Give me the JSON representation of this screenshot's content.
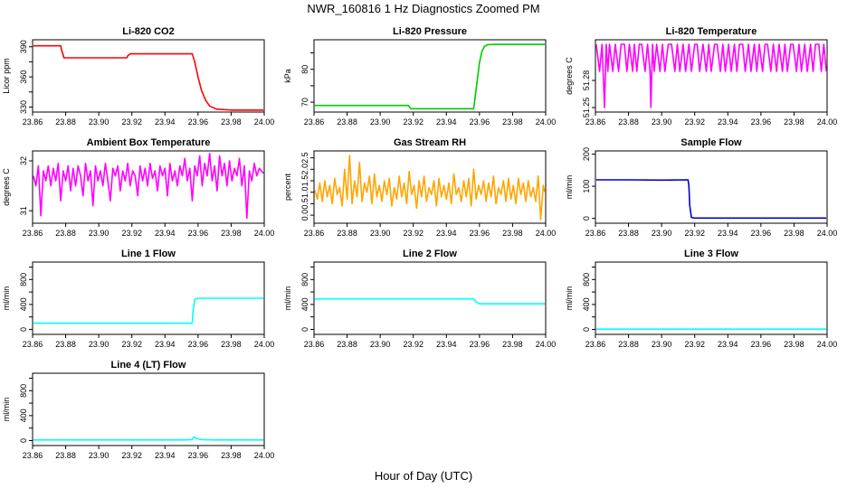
{
  "figure": {
    "title": "NWR_160816  1 Hz Diagnostics Zoomed PM",
    "xlabel": "Hour of Day (UTC)"
  },
  "chart_data": [
    {
      "type": "line",
      "title": "Li-820 CO2",
      "ylabel": "Licor ppm",
      "color": "#ff0000",
      "xlim": [
        23.86,
        24.0
      ],
      "ylim": [
        325,
        397
      ],
      "yticks": [
        330,
        360,
        390
      ],
      "yticks_extra": [
        345,
        375
      ],
      "xticks": [
        23.86,
        23.88,
        23.9,
        23.92,
        23.94,
        23.96,
        23.98,
        24.0
      ],
      "series": [
        {
          "x": [
            23.8605,
            23.877,
            23.8775,
            23.879,
            23.917,
            23.9175,
            23.919,
            23.9565,
            23.958,
            23.96,
            23.962,
            23.9645,
            23.967,
            23.971,
            23.98,
            23.9995
          ],
          "y": [
            391,
            391,
            387,
            379,
            379,
            381,
            383,
            383,
            375,
            360,
            347,
            337,
            331,
            328,
            327,
            327
          ]
        }
      ]
    },
    {
      "type": "line",
      "title": "Li-820 Pressure",
      "ylabel": "kPa",
      "color": "#00cc00",
      "xlim": [
        23.86,
        24.0
      ],
      "ylim": [
        67,
        89
      ],
      "yticks": [
        70,
        80
      ],
      "yticks_extra": [
        75,
        85
      ],
      "xticks": [
        23.86,
        23.88,
        23.9,
        23.92,
        23.94,
        23.96,
        23.98,
        24.0
      ],
      "series": [
        {
          "x": [
            23.8605,
            23.917,
            23.9185,
            23.9565,
            23.957,
            23.9585,
            23.96,
            23.9615,
            23.963,
            23.965,
            23.97,
            23.99,
            23.9995
          ],
          "y": [
            69,
            69,
            68,
            68,
            70,
            76,
            82,
            85.5,
            87,
            87.5,
            87.6,
            87.6,
            87.6
          ]
        }
      ]
    },
    {
      "type": "line",
      "title": "Li-820 Temperature",
      "ylabel": "degrees C",
      "color": "#ff00ff",
      "xlim": [
        23.86,
        24.0
      ],
      "ylim": [
        51.245,
        51.325
      ],
      "yticks": [
        51.25,
        51.28
      ],
      "xticks": [
        23.86,
        23.88,
        23.9,
        23.92,
        23.94,
        23.96,
        23.98,
        24.0
      ],
      "series": [
        {
          "x": [
            23.8605,
            23.8625,
            23.864,
            23.8655,
            23.8665,
            23.8675,
            23.8685,
            23.8705,
            23.872,
            23.874,
            23.8755,
            23.8775,
            23.879,
            23.8805,
            23.8825,
            23.8835,
            23.885,
            23.8865,
            23.888,
            23.89,
            23.8915,
            23.893,
            23.8935,
            23.8945,
            23.8955,
            23.897,
            23.899,
            23.9005,
            23.902,
            23.904,
            23.906,
            23.908,
            23.9095,
            23.911,
            23.913,
            23.9145,
            23.9165,
            23.918,
            23.92,
            23.9215,
            23.923,
            23.925,
            23.927,
            23.9285,
            23.93,
            23.932,
            23.9335,
            23.9355,
            23.937,
            23.9385,
            23.9405,
            23.942,
            23.944,
            23.9455,
            23.947,
            23.949,
            23.9505,
            23.9525,
            23.954,
            23.956,
            23.9575,
            23.959,
            23.961,
            23.9625,
            23.964,
            23.966,
            23.9675,
            23.9695,
            23.971,
            23.973,
            23.9745,
            23.976,
            23.978,
            23.9795,
            23.9815,
            23.983,
            23.9845,
            23.9865,
            23.988,
            23.99,
            23.9915,
            23.993,
            23.995,
            23.9965,
            23.998,
            23.9995
          ],
          "y": [
            51.32,
            51.29,
            51.32,
            51.25,
            51.32,
            51.29,
            51.32,
            51.29,
            51.32,
            51.29,
            51.32,
            51.32,
            51.29,
            51.32,
            51.29,
            51.32,
            51.29,
            51.32,
            51.32,
            51.29,
            51.32,
            51.29,
            51.25,
            51.32,
            51.29,
            51.32,
            51.29,
            51.32,
            51.29,
            51.32,
            51.32,
            51.29,
            51.32,
            51.29,
            51.32,
            51.29,
            51.32,
            51.29,
            51.32,
            51.32,
            51.29,
            51.32,
            51.29,
            51.32,
            51.29,
            51.32,
            51.32,
            51.29,
            51.32,
            51.29,
            51.32,
            51.29,
            51.32,
            51.29,
            51.32,
            51.32,
            51.29,
            51.32,
            51.29,
            51.32,
            51.29,
            51.32,
            51.29,
            51.32,
            51.32,
            51.29,
            51.32,
            51.29,
            51.32,
            51.29,
            51.32,
            51.29,
            51.32,
            51.32,
            51.29,
            51.32,
            51.29,
            51.32,
            51.29,
            51.32,
            51.29,
            51.32,
            51.32,
            51.29,
            51.32,
            51.29
          ]
        }
      ]
    },
    {
      "type": "line",
      "title": "Ambient Box Temperature",
      "ylabel": "degrees C",
      "color": "#ff00ff",
      "xlim": [
        23.86,
        24.0
      ],
      "ylim": [
        30.75,
        32.2
      ],
      "yticks": [
        31.0,
        32.0
      ],
      "xticks": [
        23.86,
        23.88,
        23.9,
        23.92,
        23.94,
        23.96,
        23.98,
        24.0
      ],
      "series": [
        {
          "x": [
            23.8605,
            23.862,
            23.8635,
            23.865,
            23.8665,
            23.868,
            23.8695,
            23.871,
            23.8725,
            23.874,
            23.8755,
            23.877,
            23.8785,
            23.88,
            23.8815,
            23.883,
            23.8845,
            23.886,
            23.8875,
            23.889,
            23.8905,
            23.892,
            23.8935,
            23.895,
            23.8965,
            23.898,
            23.8995,
            23.901,
            23.9025,
            23.904,
            23.9055,
            23.907,
            23.9085,
            23.91,
            23.9115,
            23.913,
            23.9145,
            23.916,
            23.9175,
            23.919,
            23.9205,
            23.922,
            23.9235,
            23.925,
            23.9265,
            23.928,
            23.9295,
            23.931,
            23.9325,
            23.934,
            23.9355,
            23.937,
            23.9385,
            23.94,
            23.9415,
            23.943,
            23.9445,
            23.946,
            23.9475,
            23.949,
            23.9505,
            23.952,
            23.9535,
            23.955,
            23.9565,
            23.958,
            23.9595,
            23.961,
            23.9625,
            23.964,
            23.9655,
            23.967,
            23.9685,
            23.97,
            23.9715,
            23.973,
            23.9745,
            23.976,
            23.9775,
            23.979,
            23.9805,
            23.982,
            23.9835,
            23.985,
            23.9865,
            23.988,
            23.9895,
            23.991,
            23.9925,
            23.994,
            23.9955,
            23.997,
            23.9995
          ],
          "y": [
            31.7,
            31.5,
            31.9,
            30.9,
            31.8,
            31.6,
            31.9,
            31.5,
            31.85,
            31.6,
            31.95,
            31.2,
            31.8,
            31.6,
            31.9,
            31.4,
            31.85,
            31.5,
            31.9,
            31.7,
            31.3,
            31.95,
            31.6,
            31.8,
            31.1,
            31.9,
            31.6,
            31.8,
            31.5,
            31.95,
            31.6,
            31.2,
            31.85,
            31.7,
            31.9,
            31.4,
            31.8,
            31.6,
            31.95,
            31.5,
            31.8,
            31.7,
            31.3,
            31.9,
            31.6,
            31.85,
            31.5,
            31.95,
            31.65,
            31.8,
            31.4,
            31.9,
            31.7,
            31.85,
            31.3,
            31.95,
            31.6,
            31.8,
            31.5,
            31.9,
            31.7,
            32.05,
            31.6,
            31.85,
            31.2,
            31.9,
            31.7,
            32.1,
            31.5,
            31.95,
            31.7,
            32.15,
            31.6,
            31.9,
            31.4,
            32.1,
            31.7,
            31.95,
            31.5,
            32.0,
            31.6,
            31.85,
            31.7,
            32.05,
            31.5,
            31.9,
            30.85,
            31.8,
            31.6,
            31.95,
            31.7,
            31.85,
            31.75
          ]
        }
      ]
    },
    {
      "type": "line",
      "title": "Gas Stream RH",
      "ylabel": "percent",
      "color": "#ffa500",
      "xlim": [
        23.86,
        24.0
      ],
      "ylim": [
        -0.35,
        2.8
      ],
      "yticks": [
        0.0,
        0.5,
        1.0,
        1.5,
        2.0,
        2.5
      ],
      "xticks": [
        23.86,
        23.88,
        23.9,
        23.92,
        23.94,
        23.96,
        23.98,
        24.0
      ],
      "series": [
        {
          "x": [
            23.8605,
            23.862,
            23.8635,
            23.865,
            23.8665,
            23.868,
            23.8695,
            23.871,
            23.8725,
            23.874,
            23.8755,
            23.877,
            23.8785,
            23.88,
            23.8815,
            23.883,
            23.8845,
            23.886,
            23.8875,
            23.889,
            23.8905,
            23.892,
            23.8935,
            23.895,
            23.8965,
            23.898,
            23.8995,
            23.901,
            23.9025,
            23.904,
            23.9055,
            23.907,
            23.9085,
            23.91,
            23.9115,
            23.913,
            23.9145,
            23.916,
            23.9175,
            23.919,
            23.9205,
            23.922,
            23.9235,
            23.925,
            23.9265,
            23.928,
            23.9295,
            23.931,
            23.9325,
            23.934,
            23.9355,
            23.937,
            23.9385,
            23.94,
            23.9415,
            23.943,
            23.9445,
            23.946,
            23.9475,
            23.949,
            23.9505,
            23.952,
            23.9535,
            23.955,
            23.9565,
            23.958,
            23.9595,
            23.961,
            23.9625,
            23.964,
            23.9655,
            23.967,
            23.9685,
            23.97,
            23.9715,
            23.973,
            23.9745,
            23.976,
            23.9775,
            23.979,
            23.9805,
            23.982,
            23.9835,
            23.985,
            23.9865,
            23.988,
            23.9895,
            23.991,
            23.9925,
            23.994,
            23.9955,
            23.997,
            23.9985,
            23.9995
          ],
          "y": [
            1.1,
            0.7,
            1.4,
            0.6,
            1.5,
            0.8,
            1.3,
            0.5,
            1.6,
            0.9,
            1.2,
            0.4,
            2.0,
            0.7,
            2.6,
            0.5,
            1.5,
            0.8,
            2.3,
            0.6,
            1.4,
            1.0,
            1.7,
            0.5,
            1.8,
            0.8,
            1.3,
            0.6,
            1.5,
            0.9,
            1.6,
            0.4,
            1.2,
            0.7,
            1.7,
            0.8,
            1.4,
            0.5,
            1.9,
            0.9,
            1.3,
            0.3,
            1.5,
            0.8,
            1.7,
            0.6,
            1.2,
            0.9,
            1.5,
            0.4,
            1.6,
            0.8,
            1.3,
            0.7,
            1.4,
            0.5,
            1.8,
            0.9,
            1.2,
            0.6,
            1.5,
            0.8,
            1.6,
            0.4,
            2.0,
            0.7,
            1.3,
            0.9,
            1.5,
            0.6,
            1.4,
            0.8,
            1.7,
            0.5,
            1.2,
            0.9,
            1.5,
            0.6,
            1.6,
            0.7,
            1.3,
            0.5,
            1.6,
            0.9,
            1.4,
            0.6,
            1.5,
            0.8,
            1.2,
            0.6,
            1.7,
            -0.2,
            1.3,
            1.0
          ]
        }
      ]
    },
    {
      "type": "line",
      "title": "Sample Flow",
      "ylabel": "ml/min",
      "color": "#0000cc",
      "xlim": [
        23.86,
        24.0
      ],
      "ylim": [
        -15,
        210
      ],
      "yticks": [
        0,
        100,
        200
      ],
      "xticks": [
        23.86,
        23.88,
        23.9,
        23.92,
        23.94,
        23.96,
        23.98,
        24.0
      ],
      "series": [
        {
          "x": [
            23.8605,
            23.88,
            23.9,
            23.916,
            23.9165,
            23.917,
            23.918,
            23.92,
            23.94,
            23.96,
            23.98,
            23.9995
          ],
          "y": [
            120,
            120,
            119,
            120,
            100,
            40,
            3,
            1,
            1,
            1,
            1,
            1
          ]
        }
      ]
    },
    {
      "type": "line",
      "title": "Line 1 Flow",
      "ylabel": "ml/min",
      "color": "#00ffff",
      "xlim": [
        23.86,
        24.0
      ],
      "ylim": [
        -80,
        1080
      ],
      "yticks": [
        0,
        400,
        800
      ],
      "yticks_extra": [
        200,
        600,
        1000
      ],
      "xticks": [
        23.86,
        23.88,
        23.9,
        23.92,
        23.94,
        23.96,
        23.98,
        24.0
      ],
      "series": [
        {
          "x": [
            23.8605,
            23.9,
            23.9565,
            23.957,
            23.958,
            23.96,
            23.97,
            23.98,
            23.99,
            23.9995
          ],
          "y": [
            100,
            100,
            100,
            300,
            480,
            500,
            500,
            500,
            500,
            500
          ]
        }
      ]
    },
    {
      "type": "line",
      "title": "Line 2 Flow",
      "ylabel": "ml/min",
      "color": "#00ffff",
      "xlim": [
        23.86,
        24.0
      ],
      "ylim": [
        -80,
        1080
      ],
      "yticks": [
        0,
        400,
        800
      ],
      "yticks_extra": [
        200,
        600,
        1000
      ],
      "xticks": [
        23.86,
        23.88,
        23.9,
        23.92,
        23.94,
        23.96,
        23.98,
        24.0
      ],
      "series": [
        {
          "x": [
            23.8605,
            23.9,
            23.94,
            23.9565,
            23.958,
            23.96,
            23.98,
            23.9995
          ],
          "y": [
            490,
            490,
            490,
            490,
            440,
            410,
            410,
            410
          ]
        }
      ]
    },
    {
      "type": "line",
      "title": "Line 3 Flow",
      "ylabel": "ml/min",
      "color": "#00ffff",
      "xlim": [
        23.86,
        24.0
      ],
      "ylim": [
        -80,
        1080
      ],
      "yticks": [
        0,
        400,
        800
      ],
      "yticks_extra": [
        200,
        600,
        1000
      ],
      "xticks": [
        23.86,
        23.88,
        23.9,
        23.92,
        23.94,
        23.96,
        23.98,
        24.0
      ],
      "series": [
        {
          "x": [
            23.8605,
            23.9995
          ],
          "y": [
            5,
            5
          ]
        }
      ]
    },
    {
      "type": "line",
      "title": "Line 4 (LT) Flow",
      "ylabel": "ml/min",
      "color": "#00ffff",
      "xlim": [
        23.86,
        24.0
      ],
      "ylim": [
        -80,
        1080
      ],
      "yticks": [
        0,
        400,
        800
      ],
      "yticks_extra": [
        200,
        600,
        1000
      ],
      "xticks": [
        23.86,
        23.88,
        23.9,
        23.92,
        23.94,
        23.96,
        23.98,
        24.0
      ],
      "series": [
        {
          "x": [
            23.8605,
            23.9,
            23.95,
            23.9565,
            23.9575,
            23.9585,
            23.96,
            23.962,
            23.97,
            23.9995
          ],
          "y": [
            10,
            10,
            10,
            15,
            60,
            40,
            25,
            15,
            10,
            10
          ]
        }
      ]
    }
  ]
}
